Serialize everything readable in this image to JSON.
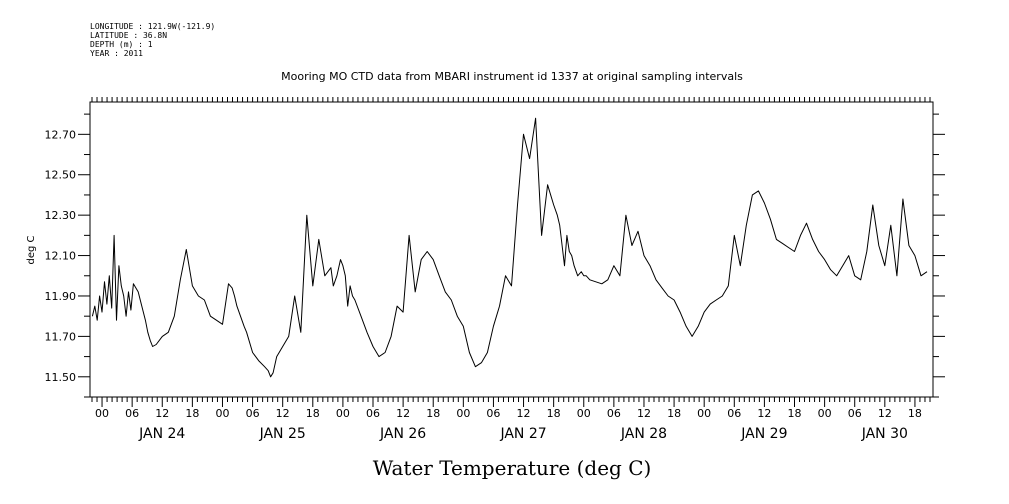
{
  "header": {
    "longitude": "LONGITUDE : 121.9W(-121.9)",
    "latitude": "LATITUDE : 36.8N",
    "depth": "DEPTH (m) : 1",
    "year": "YEAR : 2011"
  },
  "chart_data": {
    "type": "line",
    "title": "Mooring MO CTD data from MBARI instrument id 1337 at original sampling intervals",
    "ylabel": "deg C",
    "xlabel": "Water Temperature (deg C)",
    "ylim": [
      11.4,
      12.86
    ],
    "xlim": [
      -0.1,
      6.9
    ],
    "grid": false,
    "line_color": "#000000",
    "y_ticks": [
      11.5,
      11.7,
      11.9,
      12.1,
      12.3,
      12.5,
      12.7
    ],
    "y_tick_labels": [
      "11.50",
      "11.70",
      "11.90",
      "12.10",
      "12.30",
      "12.50",
      "12.70"
    ],
    "x_hour_ticks": [
      "00",
      "06",
      "12",
      "18"
    ],
    "x_day_labels": [
      "JAN 24",
      "JAN 25",
      "JAN 26",
      "JAN 27",
      "JAN 28",
      "JAN 29",
      "JAN 30"
    ],
    "x_unit": "days since JAN 24 00:00",
    "series": [
      {
        "x": [
          -0.08,
          -0.06,
          -0.04,
          -0.02,
          0.0,
          0.02,
          0.04,
          0.06,
          0.08,
          0.1,
          0.12,
          0.14,
          0.16,
          0.18,
          0.2,
          0.22,
          0.24,
          0.26,
          0.3,
          0.33,
          0.36,
          0.38,
          0.4,
          0.42,
          0.45,
          0.5,
          0.55,
          0.6,
          0.65,
          0.7,
          0.75,
          0.8,
          0.85,
          0.9,
          0.95,
          1.0,
          1.05,
          1.08,
          1.1,
          1.12,
          1.15,
          1.18,
          1.2,
          1.25,
          1.3,
          1.35,
          1.38,
          1.4,
          1.42,
          1.45,
          1.5,
          1.55,
          1.6,
          1.65,
          1.7,
          1.75,
          1.8,
          1.85,
          1.9,
          1.92,
          1.95,
          1.98,
          2.0,
          2.02,
          2.04,
          2.06,
          2.08,
          2.1,
          2.15,
          2.2,
          2.25,
          2.3,
          2.35,
          2.4,
          2.45,
          2.5,
          2.55,
          2.6,
          2.65,
          2.7,
          2.75,
          2.8,
          2.85,
          2.9,
          2.95,
          3.0,
          3.05,
          3.1,
          3.15,
          3.2,
          3.25,
          3.3,
          3.35,
          3.4,
          3.45,
          3.5,
          3.55,
          3.6,
          3.65,
          3.7,
          3.75,
          3.78,
          3.8,
          3.82,
          3.84,
          3.86,
          3.88,
          3.9,
          3.92,
          3.95,
          3.98,
          4.0,
          4.02,
          4.05,
          4.1,
          4.15,
          4.2,
          4.25,
          4.3,
          4.35,
          4.4,
          4.45,
          4.5,
          4.55,
          4.6,
          4.65,
          4.7,
          4.75,
          4.8,
          4.85,
          4.9,
          4.95,
          5.0,
          5.05,
          5.1,
          5.15,
          5.2,
          5.25,
          5.3,
          5.35,
          5.4,
          5.45,
          5.5,
          5.55,
          5.6,
          5.65,
          5.7,
          5.75,
          5.8,
          5.85,
          5.9,
          5.95,
          6.0,
          6.05,
          6.1,
          6.15,
          6.2,
          6.25,
          6.3,
          6.35,
          6.4,
          6.45,
          6.5,
          6.55,
          6.6,
          6.65,
          6.7,
          6.75,
          6.8,
          6.85
        ],
        "y": [
          11.8,
          11.85,
          11.78,
          11.9,
          11.82,
          11.97,
          11.86,
          12.0,
          11.84,
          12.2,
          11.78,
          12.05,
          11.95,
          11.9,
          11.8,
          11.92,
          11.83,
          11.96,
          11.92,
          11.85,
          11.78,
          11.72,
          11.68,
          11.65,
          11.66,
          11.7,
          11.72,
          11.8,
          11.98,
          12.13,
          11.95,
          11.9,
          11.88,
          11.8,
          11.78,
          11.76,
          11.96,
          11.94,
          11.9,
          11.85,
          11.8,
          11.75,
          11.72,
          11.62,
          11.58,
          11.55,
          11.53,
          11.5,
          11.52,
          11.6,
          11.65,
          11.7,
          11.9,
          11.72,
          12.3,
          11.95,
          12.18,
          12.0,
          12.04,
          11.95,
          12.0,
          12.08,
          12.05,
          12.0,
          11.85,
          11.95,
          11.9,
          11.88,
          11.8,
          11.72,
          11.65,
          11.6,
          11.62,
          11.7,
          11.85,
          11.82,
          12.2,
          11.92,
          12.08,
          12.12,
          12.08,
          12.0,
          11.92,
          11.88,
          11.8,
          11.75,
          11.62,
          11.55,
          11.57,
          11.62,
          11.75,
          11.85,
          12.0,
          11.95,
          12.35,
          12.7,
          12.58,
          12.78,
          12.2,
          12.45,
          12.35,
          12.3,
          12.25,
          12.15,
          12.05,
          12.2,
          12.12,
          12.1,
          12.05,
          12.0,
          12.02,
          12.0,
          12.0,
          11.98,
          11.97,
          11.96,
          11.98,
          12.05,
          12.0,
          12.3,
          12.15,
          12.22,
          12.1,
          12.05,
          11.98,
          11.94,
          11.9,
          11.88,
          11.82,
          11.75,
          11.7,
          11.75,
          11.82,
          11.86,
          11.88,
          11.9,
          11.95,
          12.2,
          12.05,
          12.25,
          12.4,
          12.42,
          12.36,
          12.28,
          12.18,
          12.16,
          12.14,
          12.12,
          12.2,
          12.26,
          12.18,
          12.12,
          12.08,
          12.03,
          12.0,
          12.05,
          12.1,
          12.0,
          11.98,
          12.12,
          12.35,
          12.15,
          12.05,
          12.25,
          12.0,
          12.38,
          12.15,
          12.1,
          12.0,
          12.02
        ]
      }
    ]
  }
}
